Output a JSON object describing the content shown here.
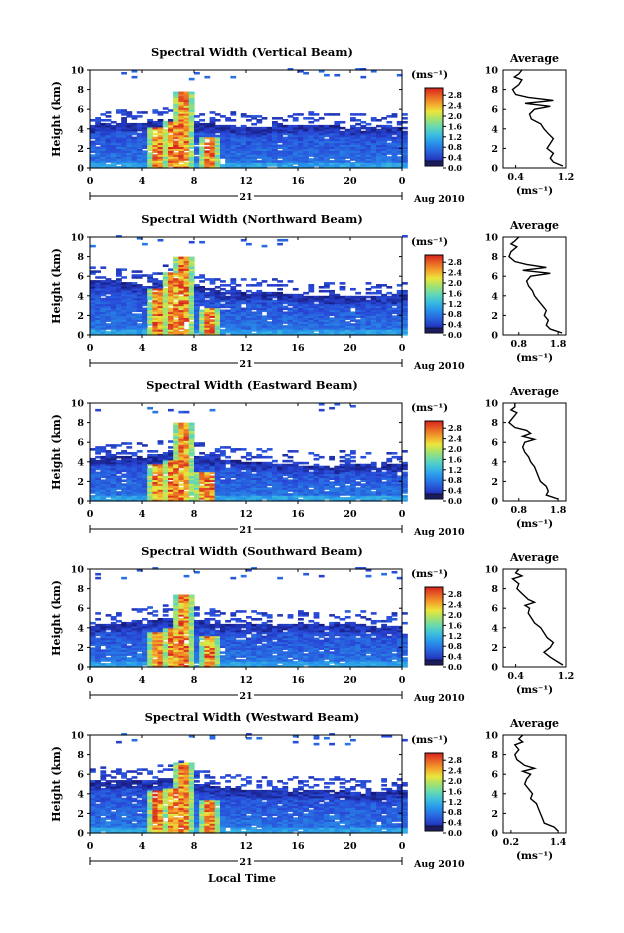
{
  "figure": {
    "ylabel": "Height (km)",
    "xlabel": "Local Time",
    "colorbar_unit": "(ms⁻¹)",
    "colorbar_ticks": [
      "2.8",
      "2.4",
      "2.0",
      "1.6",
      "1.2",
      "0.8",
      "0.4",
      "0.0"
    ],
    "date_day": "21",
    "date_label": "Aug 2010",
    "avg_title": "Average",
    "avg_unit": "(ms⁻¹)"
  },
  "chart_data": [
    {
      "type": "heatmap",
      "title": "Spectral Width (Vertical Beam)",
      "ylabel": "Height (km)",
      "xlim": [
        0,
        24
      ],
      "ylim": [
        0,
        10
      ],
      "xticks": [
        "0",
        "4",
        "8",
        "12",
        "16",
        "20",
        "0"
      ],
      "yticks": [
        "0",
        "2",
        "4",
        "6",
        "8",
        "10"
      ],
      "zlim": [
        0.0,
        3.0
      ],
      "colorbar_ticks": [
        2.8,
        2.4,
        2.0,
        1.6,
        1.2,
        0.8,
        0.4,
        0.0
      ],
      "cover_top_km": [
        [
          0,
          4.4
        ],
        [
          2,
          4.6
        ],
        [
          4,
          4.5
        ],
        [
          5,
          4.8
        ],
        [
          6,
          5.0
        ],
        [
          7,
          5.4
        ],
        [
          8,
          4.6
        ],
        [
          10,
          4.3
        ],
        [
          12,
          4.1
        ],
        [
          14,
          4.2
        ],
        [
          16,
          4.4
        ],
        [
          18,
          4.3
        ],
        [
          20,
          4.1
        ],
        [
          22,
          4.0
        ],
        [
          24,
          4.2
        ]
      ],
      "high_widths": [
        {
          "time": 5.3,
          "top_km": 4.2
        },
        {
          "time": 6.4,
          "top_km": 4.8
        },
        {
          "time": 7.1,
          "top_km": 7.8
        },
        {
          "time": 9.2,
          "top_km": 3.2
        }
      ],
      "average": {
        "title": "Average",
        "xlabel": "(ms⁻¹)",
        "xlim": [
          0.2,
          1.2
        ],
        "xticks": [
          "0.4",
          "1.2"
        ],
        "ylim": [
          0,
          10
        ],
        "height_km": [
          0.2,
          0.6,
          1,
          1.5,
          2,
          2.5,
          3,
          3.5,
          4,
          4.5,
          5,
          5.5,
          6,
          6.3,
          6.6,
          6.9,
          7.2,
          7.5,
          8,
          8.5,
          9,
          9.3,
          9.6,
          10
        ],
        "values": [
          1.15,
          1.0,
          0.95,
          1.0,
          0.9,
          0.95,
          1.0,
          0.92,
          0.85,
          0.8,
          0.65,
          0.62,
          0.7,
          0.95,
          0.55,
          1.0,
          0.6,
          0.4,
          0.35,
          0.45,
          0.5,
          0.38,
          0.45,
          0.5
        ]
      }
    },
    {
      "type": "heatmap",
      "title": "Spectral Width (Northward Beam)",
      "ylabel": "Height (km)",
      "xlim": [
        0,
        24
      ],
      "ylim": [
        0,
        10
      ],
      "xticks": [
        "0",
        "4",
        "8",
        "12",
        "16",
        "20",
        "0"
      ],
      "yticks": [
        "0",
        "2",
        "4",
        "6",
        "8",
        "10"
      ],
      "zlim": [
        0.0,
        3.0
      ],
      "colorbar_ticks": [
        2.8,
        2.4,
        2.0,
        1.6,
        1.2,
        0.8,
        0.4,
        0.0
      ],
      "cover_top_km": [
        [
          0,
          5.6
        ],
        [
          2,
          5.4
        ],
        [
          4,
          5.0
        ],
        [
          6,
          5.8
        ],
        [
          7,
          6.0
        ],
        [
          8,
          5.0
        ],
        [
          10,
          4.4
        ],
        [
          12,
          4.2
        ],
        [
          14,
          4.3
        ],
        [
          16,
          4.0
        ],
        [
          18,
          3.9
        ],
        [
          20,
          4.0
        ],
        [
          22,
          3.8
        ],
        [
          24,
          4.1
        ]
      ],
      "high_widths": [
        {
          "time": 5.3,
          "top_km": 4.8
        },
        {
          "time": 6.6,
          "top_km": 6.4
        },
        {
          "time": 7.2,
          "top_km": 8.0
        },
        {
          "time": 9.1,
          "top_km": 2.8
        }
      ],
      "average": {
        "title": "Average",
        "xlabel": "(ms⁻¹)",
        "xlim": [
          0.4,
          2.0
        ],
        "xticks": [
          "0.8",
          "1.8"
        ],
        "ylim": [
          0,
          10
        ],
        "height_km": [
          0.2,
          0.6,
          1,
          1.5,
          2,
          2.5,
          3,
          3.5,
          4,
          4.5,
          5,
          5.5,
          6,
          6.3,
          6.6,
          6.9,
          7.2,
          7.5,
          8,
          8.5,
          9,
          9.3,
          9.6,
          10
        ],
        "values": [
          1.9,
          1.6,
          1.5,
          1.55,
          1.45,
          1.5,
          1.4,
          1.3,
          1.2,
          1.15,
          1.05,
          1.0,
          1.1,
          1.6,
          0.9,
          1.5,
          1.0,
          0.7,
          0.55,
          0.6,
          0.75,
          0.6,
          0.7,
          0.8
        ]
      }
    },
    {
      "type": "heatmap",
      "title": "Spectral Width (Eastward Beam)",
      "ylabel": "Height (km)",
      "xlim": [
        0,
        24
      ],
      "ylim": [
        0,
        10
      ],
      "xticks": [
        "0",
        "4",
        "8",
        "12",
        "16",
        "20",
        "0"
      ],
      "yticks": [
        "0",
        "2",
        "4",
        "6",
        "8",
        "10"
      ],
      "zlim": [
        0.0,
        3.0
      ],
      "colorbar_ticks": [
        2.8,
        2.4,
        2.0,
        1.6,
        1.2,
        0.8,
        0.4,
        0.0
      ],
      "cover_top_km": [
        [
          0,
          4.4
        ],
        [
          2,
          4.6
        ],
        [
          4,
          4.4
        ],
        [
          6,
          4.9
        ],
        [
          7,
          5.2
        ],
        [
          8,
          4.6
        ],
        [
          10,
          4.2
        ],
        [
          12,
          3.9
        ],
        [
          14,
          3.8
        ],
        [
          16,
          3.6
        ],
        [
          18,
          3.5
        ],
        [
          20,
          3.7
        ],
        [
          22,
          3.6
        ],
        [
          24,
          3.8
        ]
      ],
      "high_widths": [
        {
          "time": 5.3,
          "top_km": 3.8
        },
        {
          "time": 6.5,
          "top_km": 4.2
        },
        {
          "time": 7.1,
          "top_km": 7.9
        },
        {
          "time": 9.0,
          "top_km": 3.0
        }
      ],
      "average": {
        "title": "Average",
        "xlabel": "(ms⁻¹)",
        "xlim": [
          0.4,
          2.0
        ],
        "xticks": [
          "0.8",
          "1.8"
        ],
        "ylim": [
          0,
          10
        ],
        "height_km": [
          0.2,
          0.6,
          1,
          1.5,
          2,
          2.5,
          3,
          3.5,
          4,
          4.5,
          5,
          5.5,
          6,
          6.3,
          6.6,
          6.9,
          7.2,
          7.5,
          8,
          8.5,
          9,
          9.3,
          9.6,
          10
        ],
        "values": [
          1.8,
          1.5,
          1.55,
          1.5,
          1.35,
          1.3,
          1.25,
          1.2,
          1.1,
          1.05,
          0.95,
          0.9,
          0.95,
          1.2,
          0.9,
          1.1,
          1.0,
          0.7,
          0.55,
          0.65,
          0.75,
          0.6,
          0.7,
          0.7
        ]
      }
    },
    {
      "type": "heatmap",
      "title": "Spectral Width (Southward Beam)",
      "ylabel": "Height (km)",
      "xlim": [
        0,
        24
      ],
      "ylim": [
        0,
        10
      ],
      "xticks": [
        "0",
        "4",
        "8",
        "12",
        "16",
        "20",
        "0"
      ],
      "yticks": [
        "0",
        "2",
        "4",
        "6",
        "8",
        "10"
      ],
      "zlim": [
        0.0,
        3.0
      ],
      "colorbar_ticks": [
        2.8,
        2.4,
        2.0,
        1.6,
        1.2,
        0.8,
        0.4,
        0.0
      ],
      "cover_top_km": [
        [
          0,
          4.2
        ],
        [
          2,
          4.4
        ],
        [
          4,
          4.6
        ],
        [
          6,
          5.0
        ],
        [
          7,
          5.4
        ],
        [
          8,
          4.8
        ],
        [
          10,
          4.4
        ],
        [
          12,
          4.3
        ],
        [
          14,
          4.2
        ],
        [
          16,
          4.3
        ],
        [
          18,
          4.2
        ],
        [
          20,
          4.4
        ],
        [
          22,
          4.0
        ],
        [
          24,
          4.1
        ]
      ],
      "high_widths": [
        {
          "time": 5.3,
          "top_km": 3.6
        },
        {
          "time": 6.6,
          "top_km": 3.9
        },
        {
          "time": 7.1,
          "top_km": 7.4
        },
        {
          "time": 9.1,
          "top_km": 3.2
        }
      ],
      "average": {
        "title": "Average",
        "xlabel": "(ms⁻¹)",
        "xlim": [
          0.2,
          1.2
        ],
        "xticks": [
          "0.4",
          "1.2"
        ],
        "ylim": [
          0,
          10
        ],
        "height_km": [
          0.2,
          0.6,
          1,
          1.5,
          2,
          2.5,
          3,
          3.5,
          4,
          4.5,
          5,
          5.5,
          6,
          6.3,
          6.6,
          6.9,
          7.2,
          7.5,
          8,
          8.5,
          9,
          9.3,
          9.6,
          10
        ],
        "values": [
          1.15,
          1.05,
          0.95,
          0.85,
          0.95,
          1.0,
          0.9,
          0.85,
          0.8,
          0.7,
          0.65,
          0.6,
          0.62,
          0.55,
          0.7,
          0.6,
          0.55,
          0.5,
          0.42,
          0.45,
          0.35,
          0.5,
          0.4,
          0.45
        ]
      }
    },
    {
      "type": "heatmap",
      "title": "Spectral Width (Westward Beam)",
      "ylabel": "Height (km)",
      "xlim": [
        0,
        24
      ],
      "ylim": [
        0,
        10
      ],
      "xticks": [
        "0",
        "4",
        "8",
        "12",
        "16",
        "20",
        "0"
      ],
      "yticks": [
        "0",
        "2",
        "4",
        "6",
        "8",
        "10"
      ],
      "zlim": [
        0.0,
        3.0
      ],
      "colorbar_ticks": [
        2.8,
        2.4,
        2.0,
        1.6,
        1.2,
        0.8,
        0.4,
        0.0
      ],
      "cover_top_km": [
        [
          0,
          5.2
        ],
        [
          2,
          5.4
        ],
        [
          4,
          5.2
        ],
        [
          6,
          5.6
        ],
        [
          7,
          6.0
        ],
        [
          8,
          5.0
        ],
        [
          10,
          4.6
        ],
        [
          12,
          4.3
        ],
        [
          14,
          4.4
        ],
        [
          16,
          4.2
        ],
        [
          18,
          4.3
        ],
        [
          20,
          4.2
        ],
        [
          22,
          4.1
        ],
        [
          24,
          4.4
        ]
      ],
      "high_widths": [
        {
          "time": 5.3,
          "top_km": 4.4
        },
        {
          "time": 6.6,
          "top_km": 4.6
        },
        {
          "time": 7.1,
          "top_km": 7.2
        },
        {
          "time": 9.1,
          "top_km": 3.4
        }
      ],
      "average": {
        "title": "Average",
        "xlabel": "(ms⁻¹)",
        "xlim": [
          0.0,
          1.6
        ],
        "xticks": [
          "0.2",
          "1.4"
        ],
        "ylim": [
          0,
          10
        ],
        "height_km": [
          0.2,
          0.6,
          1,
          1.5,
          2,
          2.5,
          3,
          3.5,
          4,
          4.5,
          5,
          5.5,
          6,
          6.3,
          6.6,
          6.9,
          7.2,
          7.5,
          8,
          8.5,
          9,
          9.3,
          9.6,
          10
        ],
        "values": [
          1.4,
          1.3,
          1.05,
          1.0,
          0.95,
          0.9,
          0.85,
          0.7,
          0.75,
          0.65,
          0.55,
          0.6,
          0.7,
          0.5,
          0.8,
          0.55,
          0.45,
          0.35,
          0.3,
          0.4,
          0.3,
          0.5,
          0.4,
          0.5
        ]
      }
    }
  ]
}
